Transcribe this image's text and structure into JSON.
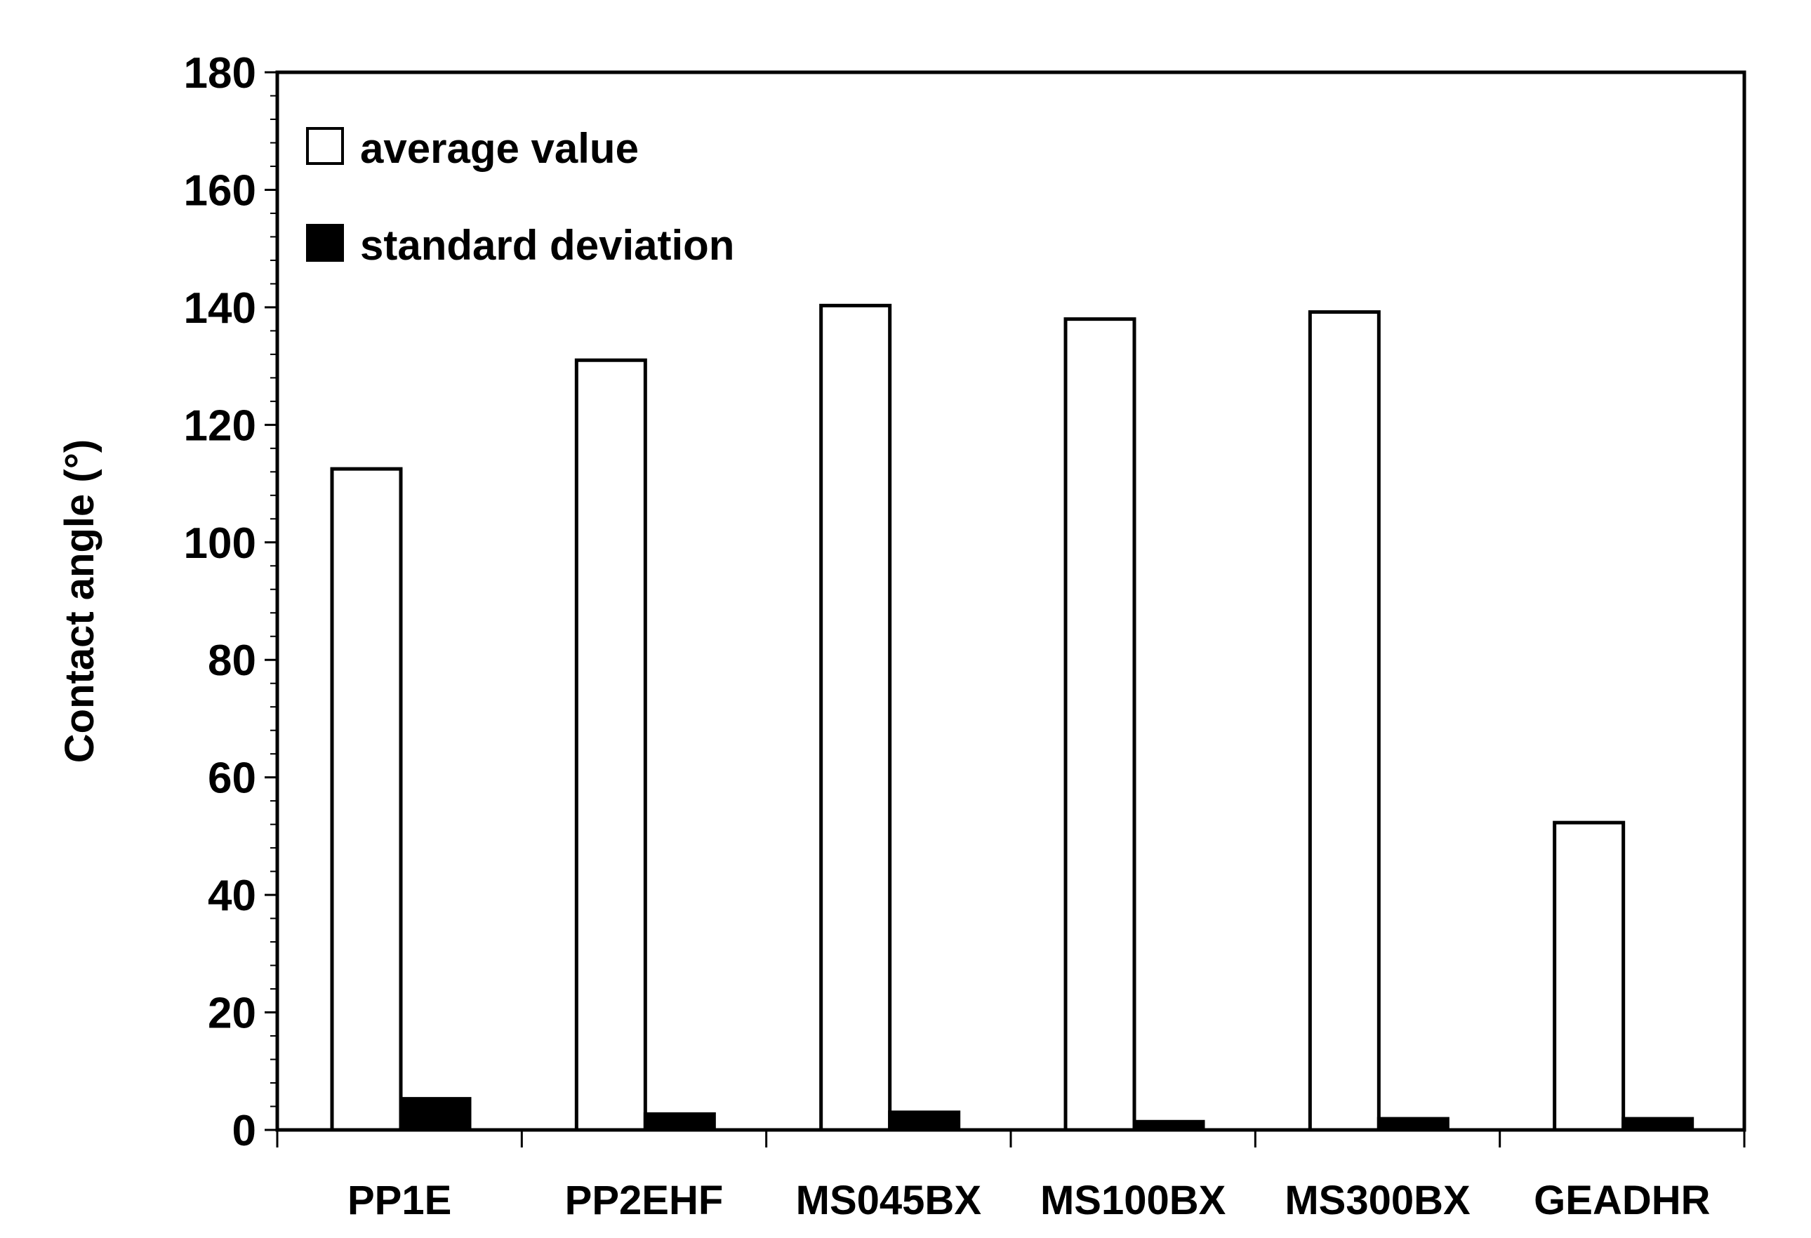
{
  "chart_data": {
    "type": "bar",
    "title": "",
    "xlabel": "",
    "ylabel": "Contact angle (°)",
    "ylim": [
      0,
      180
    ],
    "yticks": [
      "0",
      "20",
      "40",
      "60",
      "80",
      "100",
      "120",
      "140",
      "160",
      "180"
    ],
    "categories": [
      "PP1E",
      "PP2EHF",
      "MS045BX",
      "MS100BX",
      "MS300BX",
      "GEADHR"
    ],
    "series": [
      {
        "name": "average value",
        "fill": "#ffffff",
        "values": [
          112.5,
          131,
          140.3,
          138,
          139.2,
          52.3
        ]
      },
      {
        "name": "standard deviation",
        "fill": "#000000",
        "values": [
          5.3,
          2.7,
          3.0,
          1.4,
          1.9,
          1.9
        ]
      }
    ],
    "legend": "top-left",
    "grid": false
  }
}
